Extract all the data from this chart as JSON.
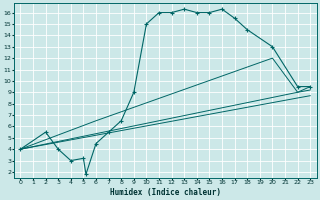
{
  "xlabel": "Humidex (Indice chaleur)",
  "ylabel": "",
  "xlim": [
    -0.5,
    23.5
  ],
  "ylim": [
    1.5,
    16.8
  ],
  "xticks": [
    0,
    1,
    2,
    3,
    4,
    5,
    6,
    7,
    8,
    9,
    10,
    11,
    12,
    13,
    14,
    15,
    16,
    17,
    18,
    19,
    20,
    21,
    22,
    23
  ],
  "yticks": [
    2,
    3,
    4,
    5,
    6,
    7,
    8,
    9,
    10,
    11,
    12,
    13,
    14,
    15,
    16
  ],
  "bg_color": "#cce8e8",
  "grid_color": "#ffffff",
  "line_color": "#006666",
  "line1_x": [
    0,
    2,
    3,
    4,
    5,
    5.2,
    6,
    7,
    8,
    9,
    10,
    11,
    12,
    13,
    14,
    15,
    16,
    17,
    18,
    20,
    22,
    23
  ],
  "line1_y": [
    4,
    5.5,
    4,
    3,
    3.2,
    1.8,
    4.5,
    5.5,
    6.5,
    9,
    15.0,
    16.0,
    16.0,
    16.3,
    16.0,
    16.0,
    16.3,
    15.5,
    14.5,
    13.0,
    9.5,
    9.5
  ],
  "line2_x": [
    0,
    22,
    23
  ],
  "line2_y": [
    4,
    9.0,
    9.2
  ],
  "line3_x": [
    0,
    22,
    23
  ],
  "line3_y": [
    4,
    8.5,
    8.7
  ],
  "line4_x": [
    0,
    6,
    20,
    22,
    23
  ],
  "line4_y": [
    4,
    6.5,
    12.0,
    9.0,
    9.5
  ]
}
